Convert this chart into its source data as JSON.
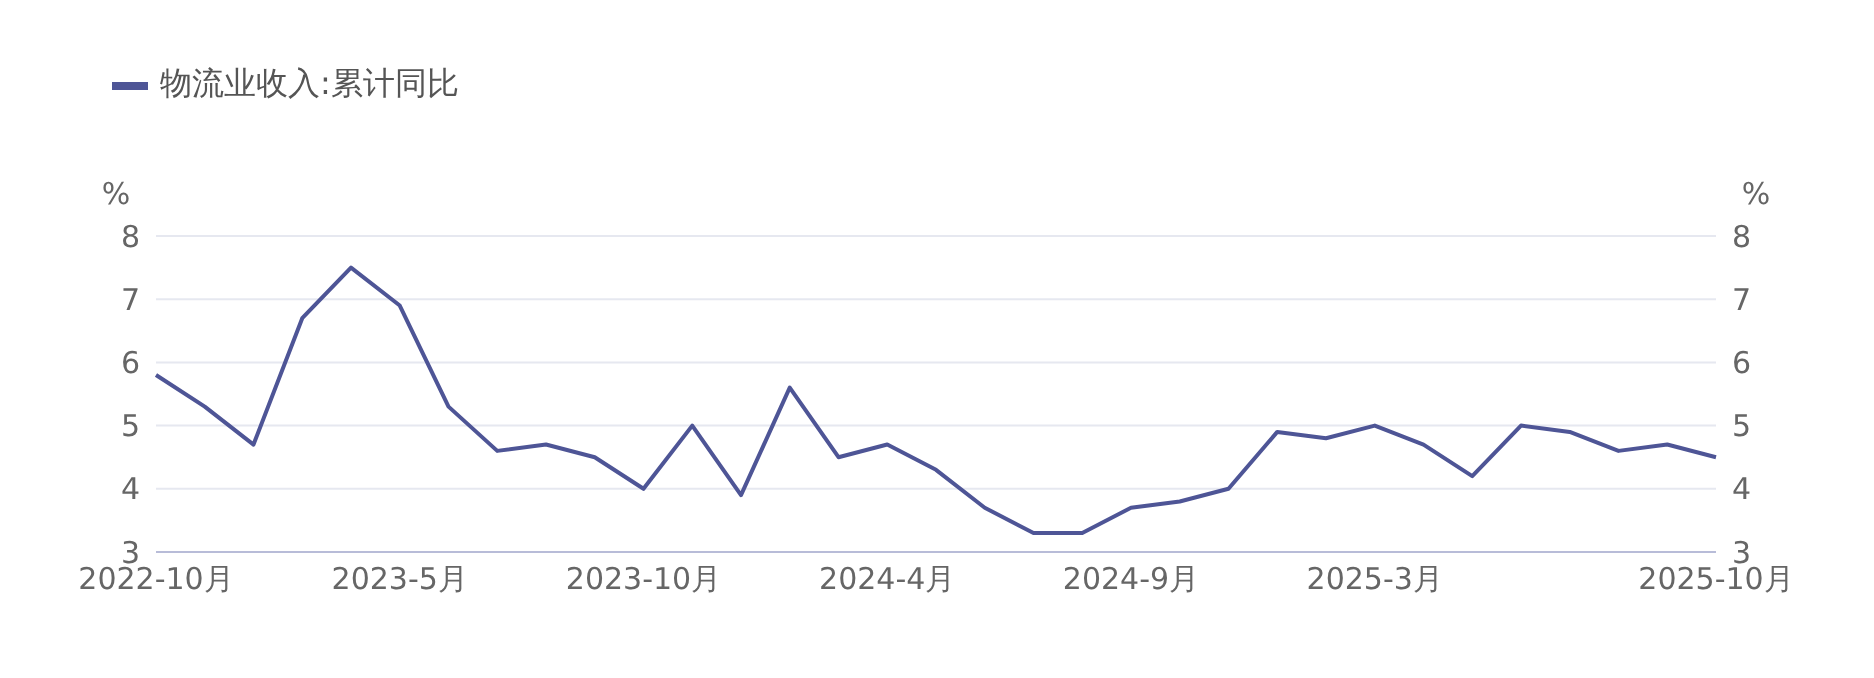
{
  "chart_data": {
    "type": "line",
    "ylabel": "%",
    "y2label": "%",
    "categories": [
      "2022-10月",
      null,
      null,
      null,
      null,
      "2023-5月",
      null,
      null,
      null,
      null,
      "2023-10月",
      null,
      null,
      null,
      null,
      "2024-4月",
      null,
      null,
      null,
      null,
      "2024-9月",
      null,
      null,
      null,
      null,
      "2025-3月",
      null,
      null,
      null,
      null,
      null,
      null,
      "2025-10月"
    ],
    "series": [
      {
        "name": "物流业收入:累计同比",
        "color": "#4e5596",
        "values": [
          5.8,
          5.3,
          4.7,
          6.7,
          7.5,
          6.9,
          5.3,
          4.6,
          4.7,
          4.5,
          4.0,
          5.0,
          3.9,
          5.6,
          4.5,
          4.7,
          4.3,
          3.7,
          3.3,
          3.3,
          3.7,
          3.8,
          4.0,
          4.9,
          4.8,
          5.0,
          4.7,
          4.2,
          5.0,
          4.9,
          4.6,
          4.7,
          4.5
        ]
      }
    ],
    "ylim": [
      3,
      8
    ],
    "yticks": [
      3,
      4,
      5,
      6,
      7,
      8
    ],
    "y2lim": [
      3,
      8
    ],
    "y2ticks": [
      3,
      4,
      5,
      6,
      7,
      8
    ],
    "grid": "y",
    "legend": "top left",
    "marker": "none",
    "line_style": "solid"
  }
}
